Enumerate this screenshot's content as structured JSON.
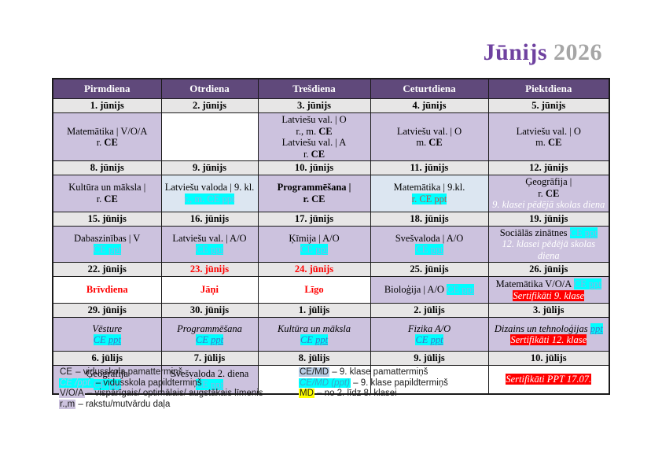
{
  "title": {
    "month": "Jūnijs",
    "year": "2026"
  },
  "colors": {
    "header_bg": "#60497b",
    "purple_cell": "#ccc2de",
    "lightblue_cell": "#dce6f1",
    "date_row_bg": "#e7e6e6",
    "cyan_highlight": "#00ffff",
    "red_highlight": "#ff0000",
    "red_text": "#ff0000",
    "title_purple": "#6f42a0",
    "year_gray": "#a6a6a6",
    "yellow_highlight": "#ffff00",
    "legend_blue": "#b8cce4"
  },
  "table": {
    "headers": [
      "Pirmdiena",
      "Otrdiena",
      "Trešdiena",
      "Ceturtdiena",
      "Piektdiena"
    ],
    "weeks": [
      {
        "dates": [
          {
            "t": "1. jūnijs"
          },
          {
            "t": "2. jūnijs"
          },
          {
            "t": "3. jūnijs"
          },
          {
            "t": "4. jūnijs"
          },
          {
            "t": "5. jūnijs"
          }
        ],
        "cells": [
          {
            "bg": "purple",
            "lines": [
              [
                {
                  "t": "Matemātika | V/O/A"
                }
              ],
              [
                {
                  "t": "r. "
                },
                {
                  "t": "CE",
                  "b": true
                }
              ]
            ]
          },
          {
            "bg": "white",
            "lines": []
          },
          {
            "bg": "purple",
            "lines": [
              [
                {
                  "t": "Latviešu val. | O"
                }
              ],
              [
                {
                  "t": "r., m. "
                },
                {
                  "t": "CE",
                  "b": true
                }
              ],
              [
                {
                  "t": "Latviešu val. | A"
                }
              ],
              [
                {
                  "t": "r. "
                },
                {
                  "t": "CE",
                  "b": true
                }
              ]
            ]
          },
          {
            "bg": "purple",
            "lines": [
              [
                {
                  "t": "Latviešu val. | O"
                }
              ],
              [
                {
                  "t": "m. "
                },
                {
                  "t": "CE",
                  "b": true
                }
              ]
            ]
          },
          {
            "bg": "purple",
            "lines": [
              [
                {
                  "t": "Latviešu val. | O"
                }
              ],
              [
                {
                  "t": "m. "
                },
                {
                  "t": "CE",
                  "b": true
                }
              ]
            ]
          }
        ]
      },
      {
        "dates": [
          {
            "t": "8. jūnijs"
          },
          {
            "t": "9. jūnijs"
          },
          {
            "t": "10. jūnijs"
          },
          {
            "t": "11. jūnijs"
          },
          {
            "t": "12. jūnijs"
          }
        ],
        "cells": [
          {
            "bg": "purple",
            "lines": [
              [
                {
                  "t": "Kultūra un māksla |"
                }
              ],
              [
                {
                  "t": "r. "
                },
                {
                  "t": "CE",
                  "b": true
                }
              ]
            ]
          },
          {
            "bg": "lightblue",
            "lines": [
              [
                {
                  "t": "Latviešu valoda | 9. kl."
                }
              ],
              [
                {
                  "t": "r., m. CE ppt",
                  "hl": "cyan",
                  "c": "lb"
                }
              ]
            ]
          },
          {
            "bg": "purple",
            "lines": [
              [
                {
                  "t": "Programmēšana |",
                  "b": true
                }
              ],
              [
                {
                  "t": "r. CE",
                  "b": true
                }
              ]
            ]
          },
          {
            "bg": "lightblue",
            "lines": [
              [
                {
                  "t": "Matemātika | 9.kl."
                }
              ],
              [
                {
                  "t": "r. CE ppt",
                  "hl": "cyan",
                  "c": "dr"
                }
              ]
            ]
          },
          {
            "bg": "purple",
            "lines": [
              [
                {
                  "t": "Ģeogrāfija |"
                }
              ],
              [
                {
                  "t": "r. "
                },
                {
                  "t": "CE",
                  "b": true
                }
              ],
              [
                {
                  "t": "9. klasei pēdējā skolas diena",
                  "i": true,
                  "c": "white"
                }
              ]
            ]
          }
        ]
      },
      {
        "dates": [
          {
            "t": "15. jūnijs"
          },
          {
            "t": "16. jūnijs"
          },
          {
            "t": "17. jūnijs"
          },
          {
            "t": "18. jūnijs"
          },
          {
            "t": "19. jūnijs"
          }
        ],
        "cells": [
          {
            "bg": "purple",
            "lines": [
              [
                {
                  "t": "Dabaszinības | V"
                }
              ],
              [
                {
                  "t": "CE ",
                  "hl": "cyan",
                  "c": "lb"
                },
                {
                  "t": "ppt",
                  "hl": "cyan",
                  "c": "lb",
                  "u": true,
                  "link": true
                }
              ]
            ]
          },
          {
            "bg": "purple",
            "lines": [
              [
                {
                  "t": "Latviešu val. | A/O"
                }
              ],
              [
                {
                  "t": "CE ",
                  "hl": "cyan",
                  "c": "lb"
                },
                {
                  "t": "ppt",
                  "hl": "cyan",
                  "c": "lb",
                  "u": true,
                  "link": true
                }
              ]
            ]
          },
          {
            "bg": "purple",
            "lines": [
              [
                {
                  "t": "Ķīmija | A/O"
                }
              ],
              [
                {
                  "t": "CE ",
                  "hl": "cyan",
                  "c": "lb"
                },
                {
                  "t": "ppt",
                  "hl": "cyan",
                  "c": "lb",
                  "u": true,
                  "link": true
                }
              ]
            ]
          },
          {
            "bg": "purple",
            "lines": [
              [
                {
                  "t": "Svešvaloda | A/O"
                }
              ],
              [
                {
                  "t": "CE ",
                  "hl": "cyan",
                  "c": "lb"
                },
                {
                  "t": "ppt",
                  "hl": "cyan",
                  "c": "lb",
                  "u": true,
                  "link": true
                }
              ]
            ]
          },
          {
            "bg": "purple",
            "lines": [
              [
                {
                  "t": "Sociālās zinātnes "
                },
                {
                  "t": "CE ",
                  "hl": "cyan",
                  "c": "lb"
                },
                {
                  "t": "ppt",
                  "hl": "cyan",
                  "c": "lb",
                  "u": true,
                  "link": true
                }
              ],
              [
                {
                  "t": "12. klasei pēdējā skolas diena",
                  "i": true,
                  "c": "white"
                }
              ]
            ]
          }
        ]
      },
      {
        "dates": [
          {
            "t": "22. jūnijs"
          },
          {
            "t": "23. jūnijs",
            "red": true
          },
          {
            "t": "24. jūnijs",
            "red": true
          },
          {
            "t": "25. jūnijs"
          },
          {
            "t": "26. jūnijs"
          }
        ],
        "cells": [
          {
            "bg": "white",
            "lines": [
              [
                {
                  "t": "Brīvdiena",
                  "b": true,
                  "c": "red"
                }
              ]
            ]
          },
          {
            "bg": "white",
            "lines": [
              [
                {
                  "t": "Jāņi",
                  "b": true,
                  "c": "red"
                }
              ]
            ]
          },
          {
            "bg": "white",
            "lines": [
              [
                {
                  "t": "Līgo",
                  "b": true,
                  "c": "red"
                }
              ]
            ]
          },
          {
            "bg": "purple",
            "lines": [
              [
                {
                  "t": "Bioloģija | A/O "
                },
                {
                  "t": "CE ",
                  "hl": "cyan",
                  "c": "lb"
                },
                {
                  "t": "ppt",
                  "hl": "cyan",
                  "c": "lb",
                  "u": true,
                  "link": true
                }
              ]
            ]
          },
          {
            "bg": "purple",
            "lines": [
              [
                {
                  "t": "Matemātika V/O/A "
                },
                {
                  "t": "CE ",
                  "hl": "cyan",
                  "c": "lb"
                },
                {
                  "t": "ppt",
                  "hl": "cyan",
                  "c": "lb",
                  "u": true,
                  "link": true
                }
              ],
              [
                {
                  "t": "Sertifikāti 9. klase",
                  "hl": "red",
                  "c": "white",
                  "i": true
                }
              ]
            ]
          }
        ]
      },
      {
        "dates": [
          {
            "t": "29. jūnijs"
          },
          {
            "t": "30. jūnijs"
          },
          {
            "t": "1. jūlijs"
          },
          {
            "t": "2. jūlijs"
          },
          {
            "t": "3. jūlijs"
          }
        ],
        "cells": [
          {
            "bg": "purple",
            "lines": [
              [
                {
                  "t": "Vēsture",
                  "i": true
                }
              ],
              [
                {
                  "t": "CE ",
                  "hl": "cyan",
                  "c": "bl",
                  "i": true
                },
                {
                  "t": "ppt",
                  "hl": "cyan",
                  "c": "bl",
                  "i": true,
                  "u": true,
                  "link": true
                }
              ]
            ]
          },
          {
            "bg": "purple",
            "lines": [
              [
                {
                  "t": "Programmēšana",
                  "i": true
                }
              ],
              [
                {
                  "t": "CE ",
                  "hl": "cyan",
                  "c": "bl",
                  "i": true
                },
                {
                  "t": "ppt",
                  "hl": "cyan",
                  "c": "bl",
                  "i": true,
                  "u": true,
                  "link": true
                }
              ]
            ]
          },
          {
            "bg": "purple",
            "lines": [
              [
                {
                  "t": "Kultūra un māksla",
                  "i": true
                }
              ],
              [
                {
                  "t": "CE ",
                  "hl": "cyan",
                  "c": "bl",
                  "i": true
                },
                {
                  "t": "ppt",
                  "hl": "cyan",
                  "c": "bl",
                  "i": true,
                  "u": true,
                  "link": true
                }
              ]
            ]
          },
          {
            "bg": "purple",
            "lines": [
              [
                {
                  "t": "Fizika A/O",
                  "i": true
                }
              ],
              [
                {
                  "t": "CE ",
                  "hl": "cyan",
                  "c": "bl",
                  "i": true
                },
                {
                  "t": "ppt",
                  "hl": "cyan",
                  "c": "bl",
                  "i": true,
                  "u": true,
                  "link": true
                }
              ]
            ]
          },
          {
            "bg": "purple",
            "lines": [
              [
                {
                  "t": "Dizains un tehnoloģijas ",
                  "i": true
                },
                {
                  "t": "ppt",
                  "hl": "cyan",
                  "c": "bl",
                  "i": true,
                  "u": true,
                  "link": true
                }
              ],
              [
                {
                  "t": "Sertifikāti 12. klase",
                  "hl": "red",
                  "c": "white",
                  "i": true
                }
              ]
            ]
          }
        ]
      },
      {
        "dates": [
          {
            "t": "6. jūlijs"
          },
          {
            "t": "7. jūlijs"
          },
          {
            "t": "8. jūlijs"
          },
          {
            "t": "9. jūlijs"
          },
          {
            "t": "10. jūlijs"
          }
        ],
        "cells": [
          {
            "bg": "purple",
            "lines": [
              [
                {
                  "t": "Ģeogrāfija"
                }
              ],
              [
                {
                  "t": "CE ",
                  "hl": "cyan",
                  "c": "lb"
                },
                {
                  "t": "ppt",
                  "hl": "cyan",
                  "c": "lb",
                  "u": true,
                  "link": true
                }
              ]
            ]
          },
          {
            "bg": "purple",
            "lines": [
              [
                {
                  "t": "Svešvaloda 2. diena"
                }
              ],
              [
                {
                  "t": "CE ",
                  "hl": "cyan",
                  "c": "lb"
                },
                {
                  "t": "ppt",
                  "hl": "cyan",
                  "c": "lb",
                  "u": true,
                  "link": true
                }
              ]
            ]
          },
          {
            "bg": "white",
            "lines": []
          },
          {
            "bg": "white",
            "lines": []
          },
          {
            "bg": "white",
            "lines": [
              [
                {
                  "t": "Sertifikāti PPT 17.07.",
                  "hl": "red",
                  "c": "white",
                  "i": true
                }
              ]
            ]
          }
        ]
      }
    ]
  },
  "legend": {
    "left": [
      {
        "key": "CE",
        "key_style": "lav",
        "text": " – vidusskola pamattermiņš"
      },
      {
        "key": "CE /ppt.",
        "key_style": "cyan-lb",
        "text": " – vidusskola papildtermiņš"
      },
      {
        "key": "V/O/A",
        "key_style": "lav",
        "text": " – vispārīgais/ optimālais/ augstākais līmenis"
      },
      {
        "key": "r.,m",
        "key_style": "lav",
        "text": " – rakstu/mutvārdu daļa"
      }
    ],
    "right": [
      {
        "key": "CE/MD",
        "key_style": "lblue",
        "text": " –  9. klase pamattermiņš"
      },
      {
        "key": "CE/MD (ppt)",
        "key_style": "cyan-cy",
        "text": " – 9. klase papildtermiņš"
      },
      {
        "key": "MD",
        "key_style": "yellow",
        "text": " – no 2. līdz 8. klasei"
      }
    ]
  }
}
